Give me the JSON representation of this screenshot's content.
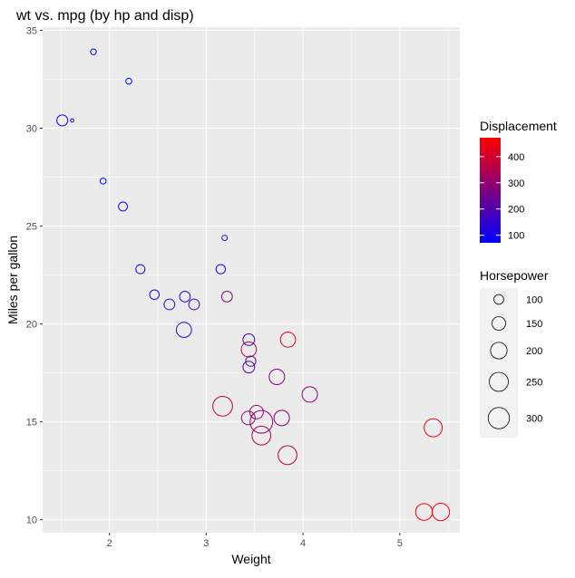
{
  "chart_data": {
    "type": "scatter",
    "title": "wt vs. mpg (by hp and disp)",
    "xlabel": "Weight",
    "ylabel": "Miles per gallon",
    "xlim": [
      1.31,
      5.62
    ],
    "ylim": [
      9.34,
      35.16
    ],
    "xticks": [
      2,
      3,
      4,
      5
    ],
    "yticks": [
      10,
      15,
      20,
      25,
      30,
      35
    ],
    "grid": true,
    "colors": {
      "panel_bg": "#ebebeb",
      "grid_major": "#ffffff",
      "low": "#0000ff",
      "high": "#ff0000",
      "legend_key_bg": "#f2f2f2"
    },
    "legend_color": {
      "title": "Displacement",
      "range": [
        71.1,
        472
      ],
      "breaks": [
        100,
        200,
        300,
        400
      ],
      "labels": [
        "100",
        "200",
        "300",
        "400"
      ]
    },
    "legend_size": {
      "title": "Horsepower",
      "range": [
        52,
        335
      ],
      "breaks": [
        100,
        150,
        200,
        250,
        300
      ],
      "labels": [
        "100",
        "150",
        "200",
        "250",
        "300"
      ]
    },
    "points": [
      {
        "wt": 2.62,
        "mpg": 21.0,
        "hp": 110,
        "disp": 160
      },
      {
        "wt": 2.875,
        "mpg": 21.0,
        "hp": 110,
        "disp": 160
      },
      {
        "wt": 2.32,
        "mpg": 22.8,
        "hp": 93,
        "disp": 108
      },
      {
        "wt": 3.215,
        "mpg": 21.4,
        "hp": 110,
        "disp": 258
      },
      {
        "wt": 3.44,
        "mpg": 18.7,
        "hp": 175,
        "disp": 360
      },
      {
        "wt": 3.46,
        "mpg": 18.1,
        "hp": 105,
        "disp": 225
      },
      {
        "wt": 3.57,
        "mpg": 14.3,
        "hp": 245,
        "disp": 360
      },
      {
        "wt": 3.19,
        "mpg": 24.4,
        "hp": 62,
        "disp": 146.7
      },
      {
        "wt": 3.15,
        "mpg": 22.8,
        "hp": 95,
        "disp": 140.8
      },
      {
        "wt": 3.44,
        "mpg": 19.2,
        "hp": 123,
        "disp": 167.6
      },
      {
        "wt": 3.44,
        "mpg": 17.8,
        "hp": 123,
        "disp": 167.6
      },
      {
        "wt": 4.07,
        "mpg": 16.4,
        "hp": 180,
        "disp": 275.8
      },
      {
        "wt": 3.73,
        "mpg": 17.3,
        "hp": 180,
        "disp": 275.8
      },
      {
        "wt": 3.78,
        "mpg": 15.2,
        "hp": 180,
        "disp": 275.8
      },
      {
        "wt": 5.25,
        "mpg": 10.4,
        "hp": 205,
        "disp": 472
      },
      {
        "wt": 5.424,
        "mpg": 10.4,
        "hp": 215,
        "disp": 460
      },
      {
        "wt": 5.345,
        "mpg": 14.7,
        "hp": 230,
        "disp": 440
      },
      {
        "wt": 2.2,
        "mpg": 32.4,
        "hp": 66,
        "disp": 78.7
      },
      {
        "wt": 1.615,
        "mpg": 30.4,
        "hp": 52,
        "disp": 75.7
      },
      {
        "wt": 1.835,
        "mpg": 33.9,
        "hp": 65,
        "disp": 71.1
      },
      {
        "wt": 2.465,
        "mpg": 21.5,
        "hp": 97,
        "disp": 120.1
      },
      {
        "wt": 3.52,
        "mpg": 15.5,
        "hp": 150,
        "disp": 318
      },
      {
        "wt": 3.435,
        "mpg": 15.2,
        "hp": 150,
        "disp": 304
      },
      {
        "wt": 3.84,
        "mpg": 13.3,
        "hp": 245,
        "disp": 350
      },
      {
        "wt": 3.845,
        "mpg": 19.2,
        "hp": 175,
        "disp": 400
      },
      {
        "wt": 1.935,
        "mpg": 27.3,
        "hp": 66,
        "disp": 79
      },
      {
        "wt": 2.14,
        "mpg": 26.0,
        "hp": 91,
        "disp": 120.3
      },
      {
        "wt": 1.513,
        "mpg": 30.4,
        "hp": 113,
        "disp": 95.1
      },
      {
        "wt": 3.17,
        "mpg": 15.8,
        "hp": 264,
        "disp": 351
      },
      {
        "wt": 2.77,
        "mpg": 19.7,
        "hp": 175,
        "disp": 145
      },
      {
        "wt": 3.57,
        "mpg": 15.0,
        "hp": 335,
        "disp": 301
      },
      {
        "wt": 2.78,
        "mpg": 21.4,
        "hp": 109,
        "disp": 121
      }
    ]
  }
}
